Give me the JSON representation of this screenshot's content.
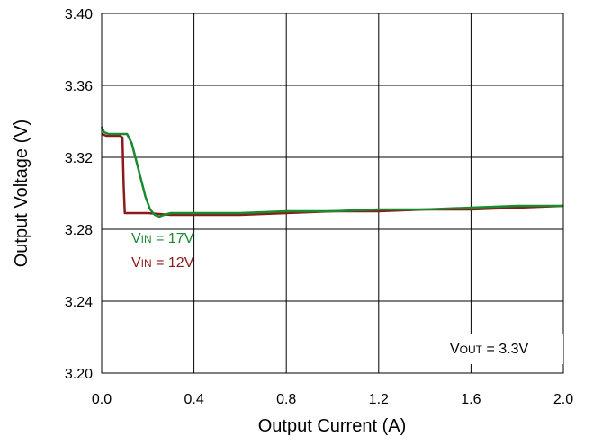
{
  "chart_data": {
    "type": "line",
    "xlabel": "Output Current (A)",
    "ylabel": "Output Voltage (V)",
    "xlim": [
      0,
      2.0
    ],
    "ylim": [
      3.2,
      3.4
    ],
    "xticks": [
      "0.0",
      "0.4",
      "0.8",
      "1.2",
      "1.6",
      "2.0"
    ],
    "yticks": [
      "3.20",
      "3.24",
      "3.28",
      "3.32",
      "3.36",
      "3.40"
    ],
    "grid": true,
    "colors": {
      "vin17": "#1a8a2e",
      "vin12": "#8b1a1a"
    },
    "series": [
      {
        "name": "VIN = 17V",
        "label_main": "V",
        "label_sub": "IN",
        "label_rest": " = 17V",
        "color": "#1a8a2e",
        "x": [
          0.0,
          0.01,
          0.03,
          0.06,
          0.09,
          0.11,
          0.13,
          0.15,
          0.17,
          0.19,
          0.21,
          0.23,
          0.25,
          0.27,
          0.3,
          0.4,
          0.6,
          0.8,
          1.0,
          1.2,
          1.4,
          1.6,
          1.8,
          2.0
        ],
        "y": [
          3.337,
          3.334,
          3.333,
          3.333,
          3.333,
          3.333,
          3.328,
          3.318,
          3.308,
          3.298,
          3.291,
          3.288,
          3.287,
          3.288,
          3.289,
          3.289,
          3.289,
          3.29,
          3.29,
          3.291,
          3.291,
          3.292,
          3.293,
          3.293
        ]
      },
      {
        "name": "VIN = 12V",
        "label_main": "V",
        "label_sub": "IN",
        "label_rest": " = 12V",
        "color": "#8b1a1a",
        "x": [
          0.0,
          0.02,
          0.05,
          0.08,
          0.09,
          0.095,
          0.1,
          0.15,
          0.2,
          0.3,
          0.4,
          0.6,
          0.8,
          1.0,
          1.2,
          1.4,
          1.6,
          1.8,
          2.0
        ],
        "y": [
          3.333,
          3.332,
          3.332,
          3.332,
          3.331,
          3.305,
          3.289,
          3.289,
          3.289,
          3.288,
          3.288,
          3.288,
          3.289,
          3.29,
          3.29,
          3.291,
          3.291,
          3.292,
          3.293
        ]
      }
    ],
    "annotation": {
      "main": "V",
      "sub": "OUT",
      "rest": " = 3.3V"
    }
  }
}
